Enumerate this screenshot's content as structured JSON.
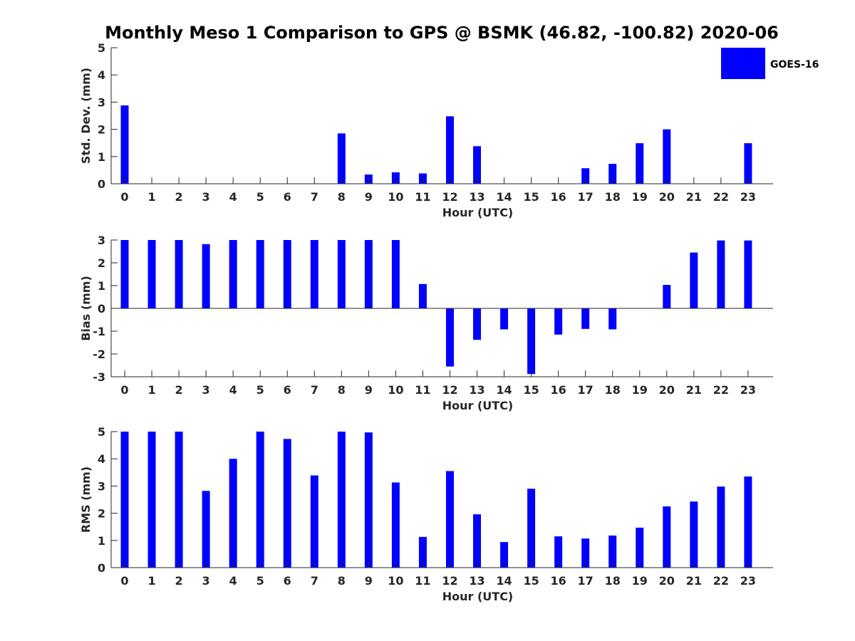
{
  "title": "Monthly Meso 1 Comparison to GPS @ BSMK (46.82, -100.82) 2020-06",
  "legend": {
    "label": "GOES-16",
    "color": "#0000ff",
    "placement": "top-right"
  },
  "chart_data": [
    {
      "type": "bar",
      "name": "std-dev",
      "categories": [
        "0",
        "1",
        "2",
        "3",
        "4",
        "5",
        "6",
        "7",
        "8",
        "9",
        "10",
        "11",
        "12",
        "13",
        "14",
        "15",
        "16",
        "17",
        "18",
        "19",
        "20",
        "21",
        "22",
        "23"
      ],
      "series": [
        {
          "name": "GOES-16",
          "values": [
            2.88,
            0,
            0,
            0,
            0,
            0,
            0,
            0,
            1.85,
            0.34,
            0.42,
            0.38,
            2.48,
            1.38,
            0,
            0,
            0,
            0.57,
            0.73,
            1.49,
            2.0,
            0,
            0,
            1.49
          ]
        }
      ],
      "xlabel": "Hour (UTC)",
      "ylabel": "Std. Dev. (mm)",
      "ylim": [
        0,
        5
      ],
      "yticks": [
        "0",
        "1",
        "2",
        "3",
        "4",
        "5"
      ],
      "grid": false
    },
    {
      "type": "bar",
      "name": "bias",
      "categories": [
        "0",
        "1",
        "2",
        "3",
        "4",
        "5",
        "6",
        "7",
        "8",
        "9",
        "10",
        "11",
        "12",
        "13",
        "14",
        "15",
        "16",
        "17",
        "18",
        "19",
        "20",
        "21",
        "22",
        "23"
      ],
      "series": [
        {
          "name": "GOES-16",
          "values": [
            3.0,
            3.0,
            3.0,
            2.82,
            3.0,
            3.0,
            3.0,
            3.0,
            3.0,
            3.0,
            3.0,
            1.07,
            -2.55,
            -1.38,
            -0.92,
            -2.88,
            -1.15,
            -0.9,
            -0.92,
            0,
            1.03,
            2.45,
            2.98,
            2.98
          ]
        }
      ],
      "xlabel": "Hour (UTC)",
      "ylabel": "Bias (mm)",
      "ylim": [
        -3,
        3
      ],
      "yticks": [
        "-3",
        "-2",
        "-1",
        "0",
        "1",
        "2",
        "3"
      ],
      "grid": false
    },
    {
      "type": "bar",
      "name": "rms",
      "categories": [
        "0",
        "1",
        "2",
        "3",
        "4",
        "5",
        "6",
        "7",
        "8",
        "9",
        "10",
        "11",
        "12",
        "13",
        "14",
        "15",
        "16",
        "17",
        "18",
        "19",
        "20",
        "21",
        "22",
        "23"
      ],
      "series": [
        {
          "name": "GOES-16",
          "values": [
            5.0,
            5.0,
            5.0,
            2.82,
            4.0,
            5.0,
            4.73,
            3.39,
            5.0,
            4.97,
            3.13,
            1.13,
            3.55,
            1.96,
            0.94,
            2.9,
            1.15,
            1.07,
            1.18,
            1.47,
            2.25,
            2.43,
            2.98,
            3.35
          ]
        }
      ],
      "xlabel": "Hour (UTC)",
      "ylabel": "RMS (mm)",
      "ylim": [
        0,
        5
      ],
      "yticks": [
        "0",
        "1",
        "2",
        "3",
        "4",
        "5"
      ],
      "grid": false
    }
  ]
}
